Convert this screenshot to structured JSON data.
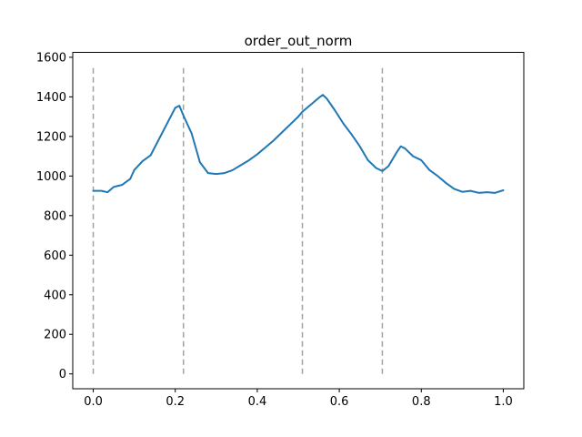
{
  "chart_data": {
    "type": "line",
    "title": "order_out_norm",
    "xlabel": "",
    "ylabel": "",
    "xlim": [
      -0.05,
      1.05
    ],
    "ylim": [
      -75,
      1625
    ],
    "xticks": [
      0.0,
      0.2,
      0.4,
      0.6,
      0.8,
      1.0
    ],
    "xtick_labels": [
      "0.0",
      "0.2",
      "0.4",
      "0.6",
      "0.8",
      "1.0"
    ],
    "yticks": [
      0,
      200,
      400,
      600,
      800,
      1000,
      1200,
      1400,
      1600
    ],
    "ytick_labels": [
      "0",
      "200",
      "400",
      "600",
      "800",
      "1000",
      "1200",
      "1400",
      "1600"
    ],
    "grid": false,
    "series": [
      {
        "color": "#1f77b4",
        "x": [
          0.0,
          0.02,
          0.035,
          0.05,
          0.07,
          0.09,
          0.1,
          0.12,
          0.14,
          0.16,
          0.18,
          0.2,
          0.21,
          0.22,
          0.24,
          0.26,
          0.28,
          0.3,
          0.32,
          0.34,
          0.36,
          0.38,
          0.4,
          0.42,
          0.44,
          0.46,
          0.48,
          0.5,
          0.51,
          0.53,
          0.55,
          0.56,
          0.57,
          0.59,
          0.61,
          0.63,
          0.65,
          0.67,
          0.69,
          0.705,
          0.72,
          0.74,
          0.75,
          0.76,
          0.78,
          0.8,
          0.82,
          0.84,
          0.86,
          0.88,
          0.9,
          0.92,
          0.94,
          0.96,
          0.98,
          1.0
        ],
        "y": [
          925,
          925,
          918,
          945,
          955,
          985,
          1030,
          1075,
          1105,
          1185,
          1265,
          1345,
          1355,
          1305,
          1215,
          1070,
          1015,
          1010,
          1015,
          1030,
          1055,
          1080,
          1110,
          1145,
          1180,
          1220,
          1260,
          1300,
          1325,
          1360,
          1395,
          1410,
          1390,
          1330,
          1265,
          1210,
          1150,
          1080,
          1040,
          1025,
          1050,
          1120,
          1150,
          1140,
          1100,
          1080,
          1030,
          1000,
          965,
          935,
          920,
          925,
          915,
          918,
          915,
          928
        ]
      }
    ],
    "vlines": {
      "x": [
        0.0,
        0.22,
        0.51,
        0.705
      ],
      "ymin": 0,
      "ymax": 1550,
      "color": "#a0a0a0",
      "style": "dashed"
    }
  }
}
